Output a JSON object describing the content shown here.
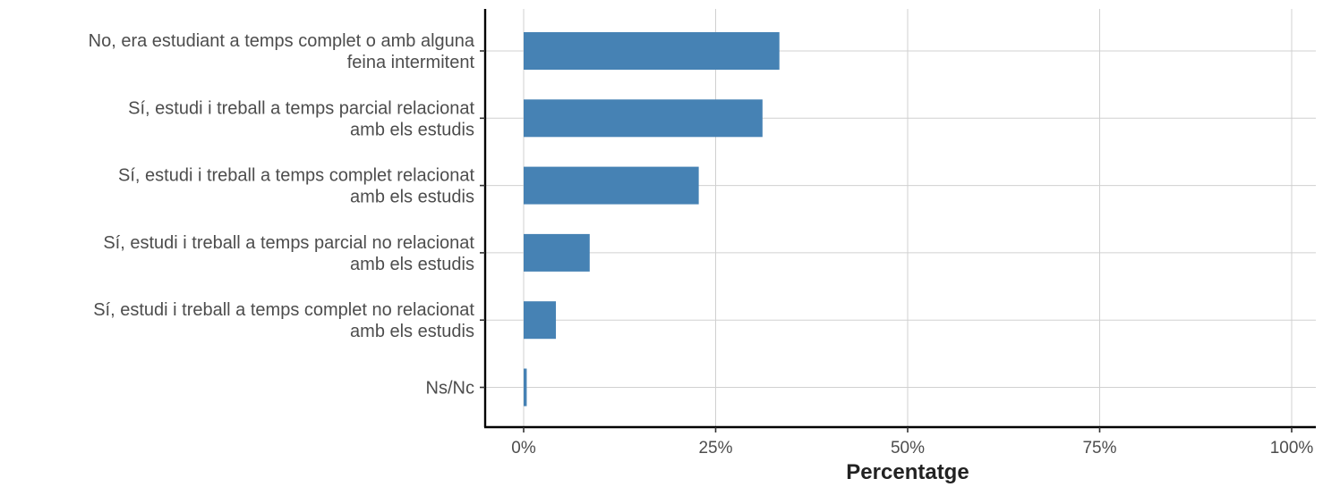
{
  "chart_data": {
    "type": "bar",
    "orientation": "horizontal",
    "categories": [
      [
        "No, era estudiant a temps complet o amb alguna",
        "feina intermitent"
      ],
      [
        "Sí, estudi i treball a temps parcial relacionat",
        "amb els estudis"
      ],
      [
        "Sí, estudi i treball a temps complet relacionat",
        "amb els estudis"
      ],
      [
        "Sí, estudi i treball a temps parcial no relacionat",
        "amb els estudis"
      ],
      [
        "Sí, estudi i treball a temps complet no relacionat",
        "amb els estudis"
      ],
      [
        "Ns/Nc"
      ]
    ],
    "values": [
      33.3,
      31.1,
      22.8,
      8.6,
      4.2,
      0.4
    ],
    "xlim": [
      0,
      100
    ],
    "xticks": [
      0,
      25,
      50,
      75,
      100
    ],
    "xtick_labels": [
      "0%",
      "25%",
      "50%",
      "75%",
      "100%"
    ],
    "xlabel": "Percentatge",
    "grid": true,
    "bar_color": "#4682b4"
  }
}
